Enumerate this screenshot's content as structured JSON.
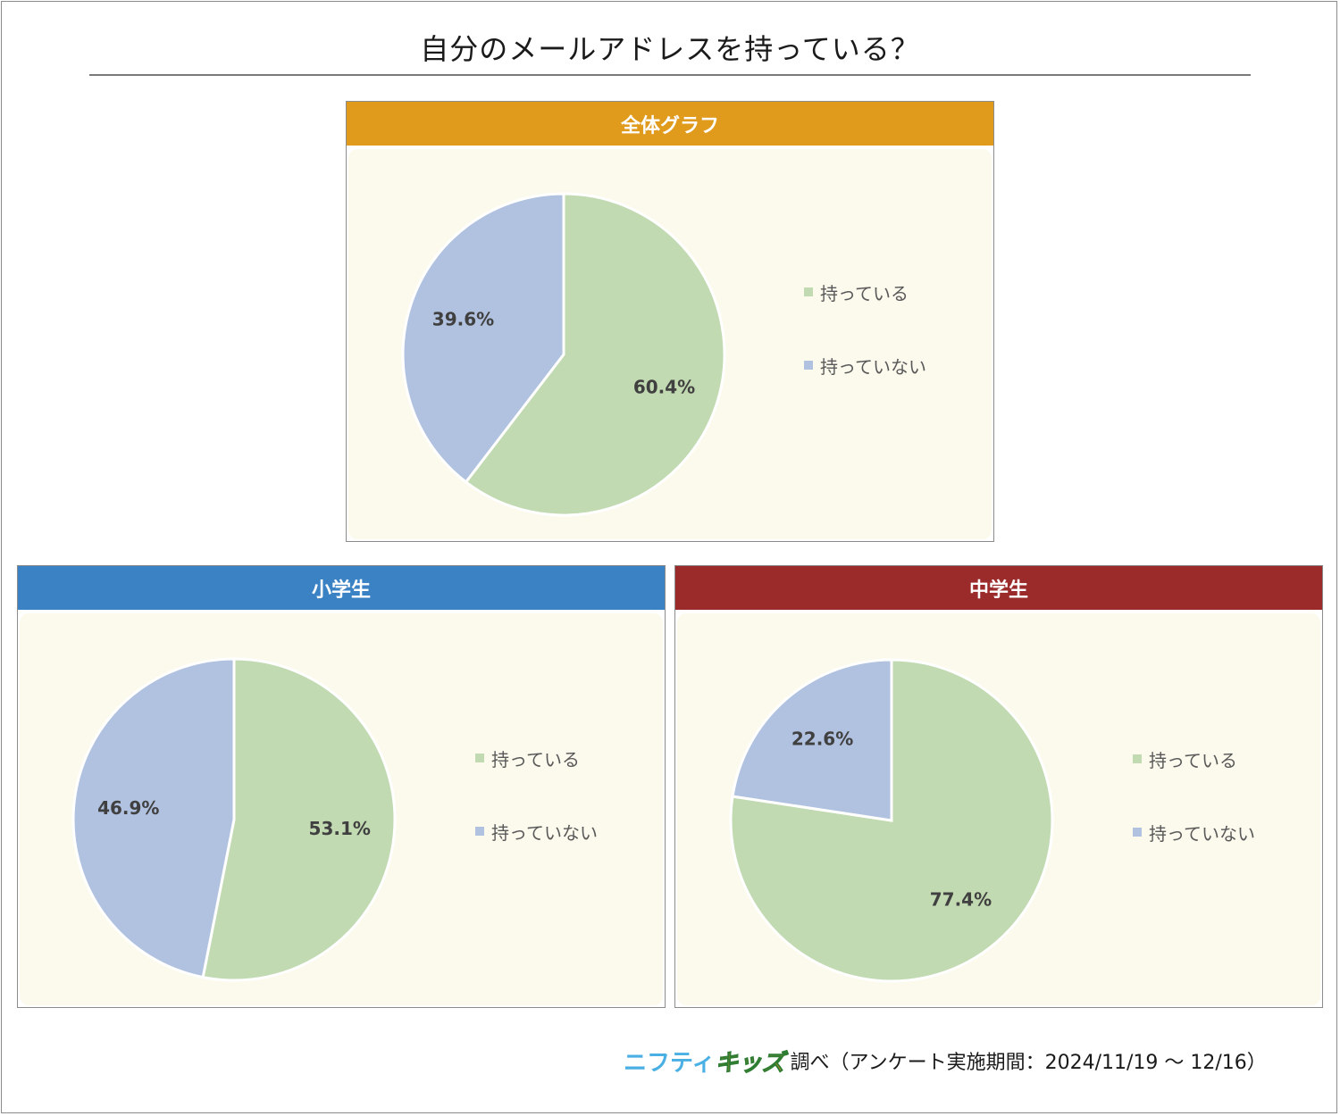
{
  "title": "自分のメールアドレスを持っている？",
  "colors": {
    "yes": "#c2dab2",
    "no": "#b1c2e0",
    "header_overall": "#e09b1d",
    "header_elementary": "#3b82c4",
    "header_junior": "#9b2a2a",
    "panel_bg": "#fcfaed"
  },
  "panels": {
    "overall": {
      "header": "全体グラフ"
    },
    "elementary": {
      "header": "小学生"
    },
    "junior": {
      "header": "中学生"
    }
  },
  "legend": {
    "yes": "持っている",
    "no": "持っていない"
  },
  "chart_data": [
    {
      "type": "pie",
      "title": "全体グラフ",
      "categories": [
        "持っている",
        "持っていない"
      ],
      "values": [
        60.4,
        39.6
      ],
      "labels": [
        "60.4%",
        "39.6%"
      ],
      "legend_position": "right"
    },
    {
      "type": "pie",
      "title": "小学生",
      "categories": [
        "持っている",
        "持っていない"
      ],
      "values": [
        53.1,
        46.9
      ],
      "labels": [
        "53.1%",
        "46.9%"
      ],
      "legend_position": "right"
    },
    {
      "type": "pie",
      "title": "中学生",
      "categories": [
        "持っている",
        "持っていない"
      ],
      "values": [
        77.4,
        22.6
      ],
      "labels": [
        "77.4%",
        "22.6%"
      ],
      "legend_position": "right"
    }
  ],
  "footer": {
    "logo_part1": "ニフティ",
    "logo_part2": "キッズ",
    "text": "調べ（アンケート実施期間：2024/11/19 ～ 12/16）"
  }
}
